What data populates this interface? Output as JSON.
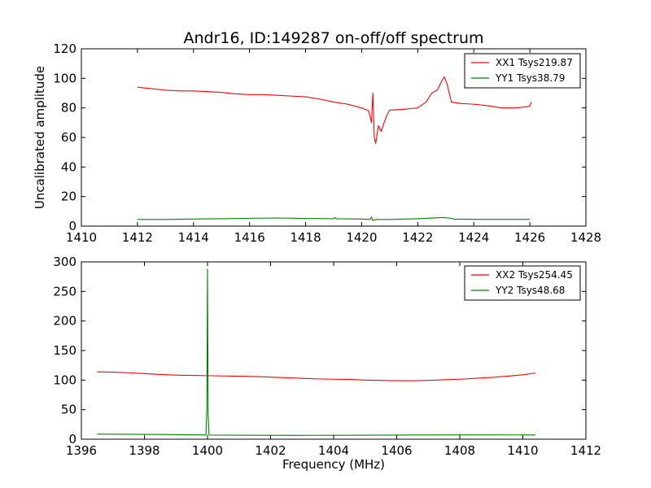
{
  "chart_data": [
    {
      "type": "line",
      "title": "Andr16, ID:149287 on-off/off spectrum",
      "xlabel": "",
      "ylabel": "Uncalibrated amplitude",
      "xlim": [
        1410,
        1428
      ],
      "ylim": [
        0,
        120
      ],
      "xticks": [
        "1410",
        "1412",
        "1414",
        "1416",
        "1418",
        "1420",
        "1422",
        "1424",
        "1426",
        "1428"
      ],
      "yticks": [
        "0",
        "20",
        "40",
        "60",
        "80",
        "100",
        "120"
      ],
      "grid": false,
      "legend_position": "top-right",
      "series": [
        {
          "name": "XX1 Tsys219.87",
          "color": "#ff0000",
          "points": [
            [
              1412.0,
              94
            ],
            [
              1412.5,
              93
            ],
            [
              1413,
              92
            ],
            [
              1413.5,
              91.5
            ],
            [
              1414,
              91.5
            ],
            [
              1414.5,
              91
            ],
            [
              1415,
              90.5
            ],
            [
              1415.5,
              89.5
            ],
            [
              1416,
              89
            ],
            [
              1416.5,
              89
            ],
            [
              1417,
              88.5
            ],
            [
              1417.5,
              88
            ],
            [
              1418,
              87.5
            ],
            [
              1418.5,
              86
            ],
            [
              1419,
              84
            ],
            [
              1419.5,
              82.5
            ],
            [
              1420,
              80
            ],
            [
              1420.25,
              78
            ],
            [
              1420.35,
              70
            ],
            [
              1420.4,
              90
            ],
            [
              1420.45,
              60
            ],
            [
              1420.5,
              56
            ],
            [
              1420.55,
              62
            ],
            [
              1420.6,
              68
            ],
            [
              1420.7,
              64
            ],
            [
              1420.8,
              70
            ],
            [
              1420.9,
              75
            ],
            [
              1421,
              78.5
            ],
            [
              1421.5,
              79
            ],
            [
              1422,
              80
            ],
            [
              1422.3,
              84
            ],
            [
              1422.5,
              90
            ],
            [
              1422.7,
              92
            ],
            [
              1422.85,
              98
            ],
            [
              1422.95,
              101
            ],
            [
              1423.05,
              96
            ],
            [
              1423.2,
              84
            ],
            [
              1423.5,
              83
            ],
            [
              1424,
              82.5
            ],
            [
              1424.5,
              81.5
            ],
            [
              1425,
              80
            ],
            [
              1425.5,
              80
            ],
            [
              1426,
              81
            ],
            [
              1426.05,
              84
            ]
          ]
        },
        {
          "name": "YY1 Tsys38.79",
          "color": "#008000",
          "points": [
            [
              1412,
              4.5
            ],
            [
              1413,
              4.5
            ],
            [
              1414,
              4.8
            ],
            [
              1415,
              5.0
            ],
            [
              1416,
              5.3
            ],
            [
              1417,
              5.5
            ],
            [
              1418,
              5.2
            ],
            [
              1419,
              5.0
            ],
            [
              1419.05,
              5.8
            ],
            [
              1419.1,
              5.0
            ],
            [
              1420,
              4.8
            ],
            [
              1420.3,
              4.6
            ],
            [
              1420.35,
              6.0
            ],
            [
              1420.4,
              3.8
            ],
            [
              1420.5,
              4.5
            ],
            [
              1421,
              4.5
            ],
            [
              1422,
              5.0
            ],
            [
              1422.9,
              5.8
            ],
            [
              1423.1,
              5.5
            ],
            [
              1423.3,
              4.8
            ],
            [
              1424,
              4.6
            ],
            [
              1425,
              4.6
            ],
            [
              1426,
              4.6
            ]
          ]
        }
      ]
    },
    {
      "type": "line",
      "title": "",
      "xlabel": "Frequency (MHz)",
      "ylabel": "",
      "xlim": [
        1396,
        1412
      ],
      "ylim": [
        0,
        300
      ],
      "xticks": [
        "1396",
        "1398",
        "1400",
        "1402",
        "1404",
        "1406",
        "1408",
        "1410",
        "1412"
      ],
      "yticks": [
        "0",
        "50",
        "100",
        "150",
        "200",
        "250",
        "300"
      ],
      "grid": false,
      "legend_position": "top-right",
      "series": [
        {
          "name": "XX2 Tsys254.45",
          "color": "#ff0000",
          "points": [
            [
              1396.5,
              114
            ],
            [
              1397,
              113.5
            ],
            [
              1397.5,
              112.5
            ],
            [
              1398,
              111
            ],
            [
              1398.5,
              109.5
            ],
            [
              1399,
              108.5
            ],
            [
              1399.5,
              108
            ],
            [
              1400,
              107.5
            ],
            [
              1400.5,
              107
            ],
            [
              1401,
              106.5
            ],
            [
              1401.5,
              106
            ],
            [
              1402,
              105
            ],
            [
              1402.5,
              104
            ],
            [
              1403,
              103
            ],
            [
              1403.5,
              102
            ],
            [
              1404,
              101.5
            ],
            [
              1404.5,
              101
            ],
            [
              1405,
              100
            ],
            [
              1405.5,
              99.5
            ],
            [
              1406,
              99
            ],
            [
              1406.5,
              99
            ],
            [
              1407,
              99.5
            ],
            [
              1407.5,
              100.5
            ],
            [
              1408,
              101.5
            ],
            [
              1408.5,
              103
            ],
            [
              1409,
              104.5
            ],
            [
              1409.5,
              106.5
            ],
            [
              1410,
              109
            ],
            [
              1410.4,
              112
            ]
          ]
        },
        {
          "name": "YY2 Tsys48.68",
          "color": "#008000",
          "points": [
            [
              1396.5,
              8.5
            ],
            [
              1397.5,
              8.3
            ],
            [
              1398.5,
              8.0
            ],
            [
              1399.5,
              7.5
            ],
            [
              1399.95,
              7.2
            ],
            [
              1399.98,
              50
            ],
            [
              1400.0,
              288
            ],
            [
              1400.02,
              40
            ],
            [
              1400.05,
              7.0
            ],
            [
              1401,
              6.8
            ],
            [
              1402,
              6.6
            ],
            [
              1403,
              6.5
            ],
            [
              1404,
              6.6
            ],
            [
              1405,
              6.8
            ],
            [
              1406,
              7.0
            ],
            [
              1407,
              7.2
            ],
            [
              1408,
              7.3
            ],
            [
              1409,
              7.3
            ],
            [
              1410,
              7.2
            ],
            [
              1410.4,
              7.2
            ]
          ]
        }
      ]
    }
  ]
}
